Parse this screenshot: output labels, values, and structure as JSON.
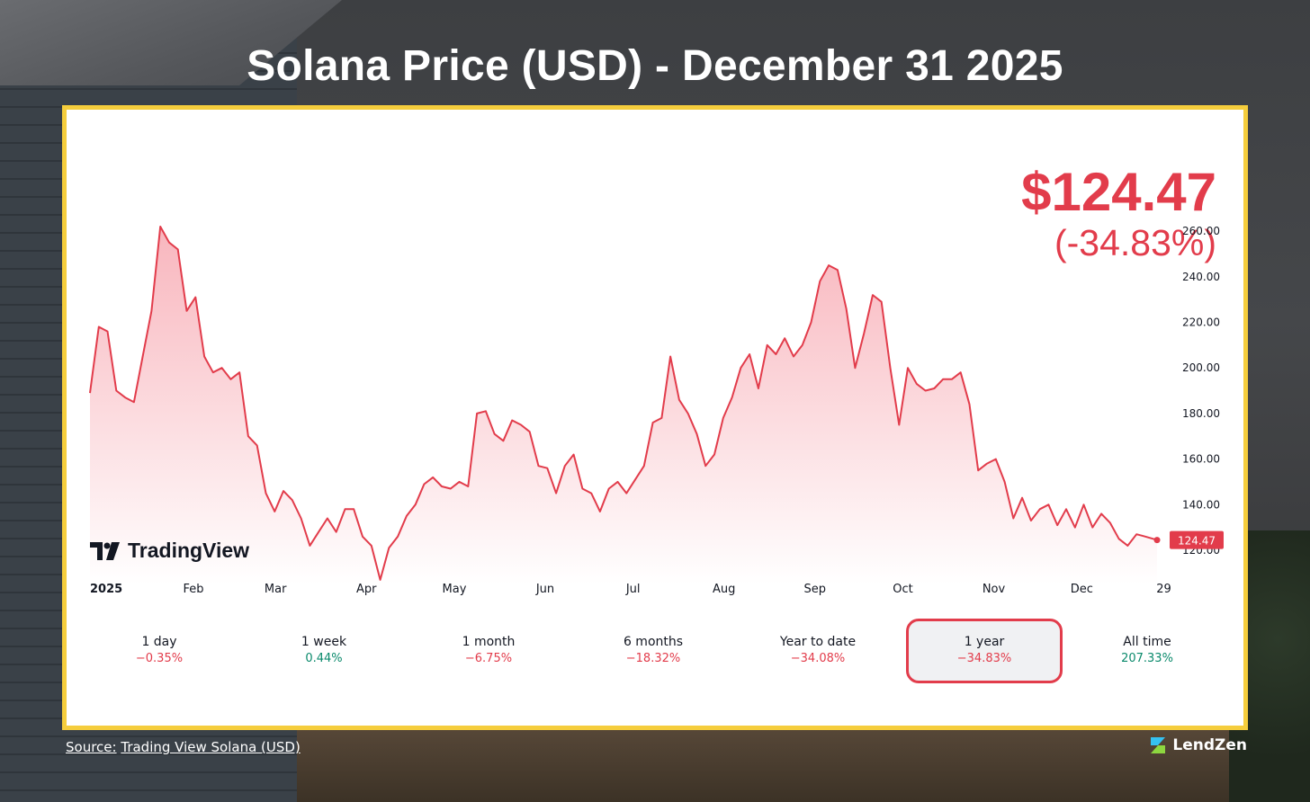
{
  "page": {
    "title": "Solana Price (USD) - December 31 2025",
    "source_label": "Source:",
    "source_link": "Trading View Solana (USD)",
    "brand": "LendZen"
  },
  "price": {
    "value": "$124.47",
    "change": "(-34.83%)"
  },
  "watermark": "TradingView",
  "ranges": [
    {
      "label": "1 day",
      "change": "−0.35%",
      "direction": "down",
      "active": false
    },
    {
      "label": "1 week",
      "change": "0.44%",
      "direction": "up",
      "active": false
    },
    {
      "label": "1 month",
      "change": "−6.75%",
      "direction": "down",
      "active": false
    },
    {
      "label": "6 months",
      "change": "−18.32%",
      "direction": "down",
      "active": false
    },
    {
      "label": "Year to date",
      "change": "−34.08%",
      "direction": "down",
      "active": false
    },
    {
      "label": "1 year",
      "change": "−34.83%",
      "direction": "down",
      "active": true
    },
    {
      "label": "All time",
      "change": "207.33%",
      "direction": "up",
      "active": false
    }
  ],
  "colors": {
    "line": "#e23c4b",
    "fill": "#fbd6da",
    "negative": "#e23c4b",
    "positive": "#0b8a6c",
    "card_border": "#f5cd3c"
  },
  "chart_data": {
    "type": "area",
    "title": "Solana Price (USD) - December 31 2025",
    "xlabel": "",
    "ylabel": "",
    "x_ticks": [
      "2025",
      "Feb",
      "Mar",
      "Apr",
      "May",
      "Jun",
      "Jul",
      "Aug",
      "Sep",
      "Oct",
      "Nov",
      "Dec",
      "29"
    ],
    "y_ticks": [
      "120.00",
      "140.00",
      "160.00",
      "180.00",
      "200.00",
      "220.00",
      "240.00",
      "260.00"
    ],
    "ylim": [
      105,
      262
    ],
    "y_axis_position": "right",
    "last_value_label": "124.47",
    "grid": false,
    "series": [
      {
        "x": [
          "2025-01-01",
          "2025-01-04",
          "2025-01-07",
          "2025-01-10",
          "2025-01-13",
          "2025-01-16",
          "2025-01-19",
          "2025-01-22",
          "2025-01-25",
          "2025-01-28",
          "2025-01-31",
          "2025-02-03",
          "2025-02-06",
          "2025-02-09",
          "2025-02-12",
          "2025-02-15",
          "2025-02-18",
          "2025-02-21",
          "2025-02-24",
          "2025-02-27",
          "2025-03-02",
          "2025-03-05",
          "2025-03-08",
          "2025-03-11",
          "2025-03-14",
          "2025-03-17",
          "2025-03-20",
          "2025-03-23",
          "2025-03-26",
          "2025-03-29",
          "2025-04-01",
          "2025-04-04",
          "2025-04-07",
          "2025-04-10",
          "2025-04-13",
          "2025-04-16",
          "2025-04-19",
          "2025-04-22",
          "2025-04-25",
          "2025-04-28",
          "2025-05-01",
          "2025-05-04",
          "2025-05-07",
          "2025-05-10",
          "2025-05-13",
          "2025-05-16",
          "2025-05-19",
          "2025-05-22",
          "2025-05-25",
          "2025-05-28",
          "2025-05-31",
          "2025-06-03",
          "2025-06-06",
          "2025-06-09",
          "2025-06-12",
          "2025-06-15",
          "2025-06-18",
          "2025-06-21",
          "2025-06-24",
          "2025-06-27",
          "2025-06-30",
          "2025-07-03",
          "2025-07-06",
          "2025-07-09",
          "2025-07-12",
          "2025-07-15",
          "2025-07-18",
          "2025-07-21",
          "2025-07-24",
          "2025-07-27",
          "2025-07-30",
          "2025-08-02",
          "2025-08-05",
          "2025-08-08",
          "2025-08-11",
          "2025-08-14",
          "2025-08-17",
          "2025-08-20",
          "2025-08-23",
          "2025-08-26",
          "2025-08-29",
          "2025-09-01",
          "2025-09-04",
          "2025-09-07",
          "2025-09-10",
          "2025-09-13",
          "2025-09-16",
          "2025-09-19",
          "2025-09-22",
          "2025-09-25",
          "2025-09-28",
          "2025-10-01",
          "2025-10-04",
          "2025-10-07",
          "2025-10-10",
          "2025-10-13",
          "2025-10-16",
          "2025-10-19",
          "2025-10-22",
          "2025-10-25",
          "2025-10-28",
          "2025-10-31",
          "2025-11-03",
          "2025-11-06",
          "2025-11-09",
          "2025-11-12",
          "2025-11-15",
          "2025-11-18",
          "2025-11-21",
          "2025-11-24",
          "2025-11-27",
          "2025-11-30",
          "2025-12-03",
          "2025-12-06",
          "2025-12-09",
          "2025-12-12",
          "2025-12-15",
          "2025-12-18",
          "2025-12-21",
          "2025-12-24",
          "2025-12-27",
          "2025-12-31"
        ],
        "values": [
          189,
          218,
          216,
          190,
          187,
          185,
          205,
          225,
          262,
          255,
          252,
          225,
          231,
          205,
          198,
          200,
          195,
          198,
          170,
          166,
          145,
          137,
          146,
          142,
          134,
          122,
          128,
          134,
          128,
          138,
          138,
          126,
          122,
          107,
          121,
          126,
          135,
          140,
          149,
          152,
          148,
          147,
          150,
          148,
          180,
          181,
          171,
          168,
          177,
          175,
          172,
          157,
          156,
          145,
          157,
          162,
          147,
          145,
          137,
          147,
          150,
          145,
          151,
          157,
          176,
          178,
          205,
          186,
          180,
          171,
          157,
          162,
          178,
          187,
          200,
          206,
          191,
          210,
          206,
          213,
          205,
          210,
          220,
          238,
          245,
          243,
          226,
          200,
          215,
          232,
          229,
          200,
          175,
          200,
          193,
          190,
          191,
          195,
          195,
          198,
          184,
          155,
          158,
          160,
          150,
          134,
          143,
          133,
          138,
          140,
          131,
          138,
          130,
          140,
          130,
          136,
          132,
          125,
          122,
          127,
          126,
          124.47
        ]
      }
    ]
  }
}
